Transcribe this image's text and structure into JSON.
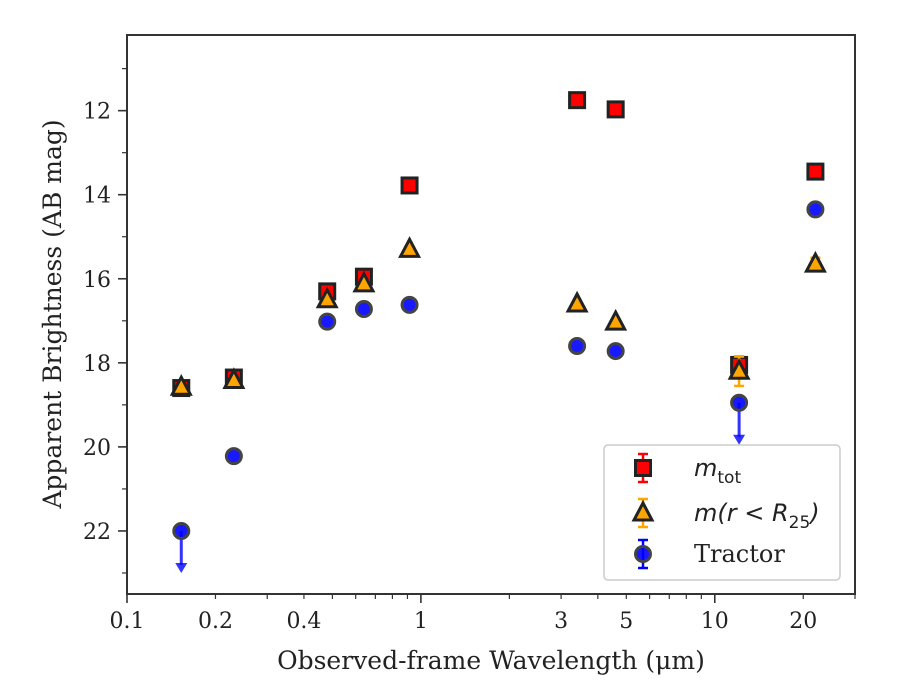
{
  "chart_data": {
    "type": "scatter",
    "xlabel": "Observed-frame Wavelength (μm)",
    "ylabel": "Apparent Brightness (AB mag)",
    "x_scale": "log",
    "xlim": [
      0.1,
      30
    ],
    "ylim": [
      23.5,
      10.2
    ],
    "y_inverted": true,
    "x_ticks": [
      {
        "value": 0.1,
        "label": "0.1"
      },
      {
        "value": 0.2,
        "label": "0.2"
      },
      {
        "value": 0.4,
        "label": "0.4"
      },
      {
        "value": 1,
        "label": "1"
      },
      {
        "value": 3,
        "label": "3"
      },
      {
        "value": 5,
        "label": "5"
      },
      {
        "value": 10,
        "label": "10"
      },
      {
        "value": 20,
        "label": "20"
      }
    ],
    "y_ticks": [
      {
        "value": 12,
        "label": "12"
      },
      {
        "value": 14,
        "label": "14"
      },
      {
        "value": 16,
        "label": "16"
      },
      {
        "value": 18,
        "label": "18"
      },
      {
        "value": 20,
        "label": "20"
      },
      {
        "value": 22,
        "label": "22"
      }
    ],
    "legend_position": "lower-right",
    "series": [
      {
        "name": "m_tot",
        "marker": "square",
        "color": "#ff0000",
        "errcolor": "#ff0000",
        "points": [
          {
            "x": 0.153,
            "y": 18.6
          },
          {
            "x": 0.231,
            "y": 18.35
          },
          {
            "x": 0.48,
            "y": 16.3
          },
          {
            "x": 0.64,
            "y": 15.95
          },
          {
            "x": 0.915,
            "y": 13.78
          },
          {
            "x": 3.4,
            "y": 11.75
          },
          {
            "x": 4.6,
            "y": 11.97
          },
          {
            "x": 12.1,
            "y": 18.05,
            "err": 0.2
          },
          {
            "x": 22.0,
            "y": 13.45
          }
        ]
      },
      {
        "name": "m(r < R25)",
        "marker": "triangle",
        "color": "#ffa500",
        "errcolor": "#ffa500",
        "points": [
          {
            "x": 0.153,
            "y": 18.58
          },
          {
            "x": 0.231,
            "y": 18.42
          },
          {
            "x": 0.48,
            "y": 16.5
          },
          {
            "x": 0.64,
            "y": 16.12
          },
          {
            "x": 0.915,
            "y": 15.3
          },
          {
            "x": 3.4,
            "y": 16.6
          },
          {
            "x": 4.6,
            "y": 17.03
          },
          {
            "x": 12.1,
            "y": 18.2,
            "err": 0.35
          },
          {
            "x": 22.0,
            "y": 15.65,
            "err": 0.15
          }
        ]
      },
      {
        "name": "Tractor",
        "marker": "circle",
        "color": "#0000ff",
        "errcolor": "#0000ff",
        "points": [
          {
            "x": 0.153,
            "y": 22.0,
            "upper_limit": true
          },
          {
            "x": 0.231,
            "y": 20.22
          },
          {
            "x": 0.48,
            "y": 17.02
          },
          {
            "x": 0.64,
            "y": 16.72
          },
          {
            "x": 0.915,
            "y": 16.62
          },
          {
            "x": 3.4,
            "y": 17.6
          },
          {
            "x": 4.6,
            "y": 17.72
          },
          {
            "x": 12.1,
            "y": 18.95,
            "upper_limit": true
          },
          {
            "x": 22.0,
            "y": 14.35
          }
        ]
      }
    ],
    "legend": {
      "entries": [
        {
          "series": "m_tot",
          "main": "m",
          "sub": "tot"
        },
        {
          "series": "m(r < R25)",
          "main": "m(r < R",
          "sub": "25",
          "tail": ")"
        },
        {
          "series": "Tractor",
          "main": "Tractor"
        }
      ]
    }
  }
}
